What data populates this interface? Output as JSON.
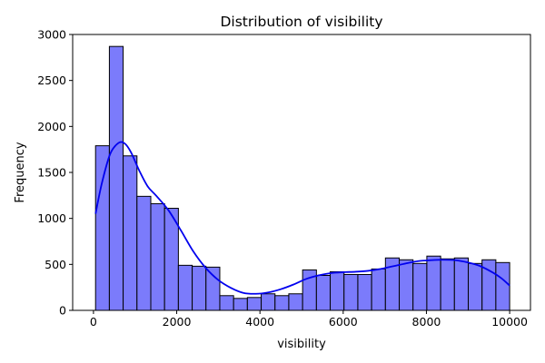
{
  "chart_data": {
    "type": "bar",
    "title": "Distribution of visibility",
    "xlabel": "visibility",
    "ylabel": "Frequency",
    "xlim": [
      -500,
      10500
    ],
    "ylim": [
      0,
      3000
    ],
    "x_ticks": [
      0,
      2000,
      4000,
      6000,
      8000,
      10000
    ],
    "x_tick_labels": [
      "0",
      "2000",
      "4000",
      "6000",
      "8000",
      "10000"
    ],
    "y_ticks": [
      0,
      500,
      1000,
      1500,
      2000,
      2500,
      3000
    ],
    "y_tick_labels": [
      "0",
      "500",
      "1000",
      "1500",
      "2000",
      "2500",
      "3000"
    ],
    "bins": [
      {
        "x0": 50,
        "x1": 382,
        "count": 1790
      },
      {
        "x0": 382,
        "x1": 713,
        "count": 2870
      },
      {
        "x0": 713,
        "x1": 1045,
        "count": 1680
      },
      {
        "x0": 1045,
        "x1": 1377,
        "count": 1240
      },
      {
        "x0": 1377,
        "x1": 1708,
        "count": 1160
      },
      {
        "x0": 1708,
        "x1": 2040,
        "count": 1110
      },
      {
        "x0": 2040,
        "x1": 2372,
        "count": 490
      },
      {
        "x0": 2372,
        "x1": 2703,
        "count": 480
      },
      {
        "x0": 2703,
        "x1": 3035,
        "count": 470
      },
      {
        "x0": 3035,
        "x1": 3367,
        "count": 160
      },
      {
        "x0": 3367,
        "x1": 3698,
        "count": 130
      },
      {
        "x0": 3698,
        "x1": 4030,
        "count": 140
      },
      {
        "x0": 4030,
        "x1": 4362,
        "count": 180
      },
      {
        "x0": 4362,
        "x1": 4693,
        "count": 160
      },
      {
        "x0": 4693,
        "x1": 5025,
        "count": 180
      },
      {
        "x0": 5025,
        "x1": 5357,
        "count": 440
      },
      {
        "x0": 5357,
        "x1": 5688,
        "count": 380
      },
      {
        "x0": 5688,
        "x1": 6020,
        "count": 420
      },
      {
        "x0": 6020,
        "x1": 6352,
        "count": 390
      },
      {
        "x0": 6352,
        "x1": 6683,
        "count": 390
      },
      {
        "x0": 6683,
        "x1": 7015,
        "count": 450
      },
      {
        "x0": 7015,
        "x1": 7347,
        "count": 570
      },
      {
        "x0": 7347,
        "x1": 7678,
        "count": 550
      },
      {
        "x0": 7678,
        "x1": 8010,
        "count": 510
      },
      {
        "x0": 8010,
        "x1": 8342,
        "count": 590
      },
      {
        "x0": 8342,
        "x1": 8673,
        "count": 560
      },
      {
        "x0": 8673,
        "x1": 9005,
        "count": 570
      },
      {
        "x0": 9005,
        "x1": 9337,
        "count": 510
      },
      {
        "x0": 9337,
        "x1": 9668,
        "count": 550
      },
      {
        "x0": 9668,
        "x1": 10000,
        "count": 520
      }
    ],
    "kde": {
      "x": [
        50,
        200,
        400,
        600,
        750,
        900,
        1100,
        1300,
        1500,
        1800,
        2100,
        2400,
        2700,
        3000,
        3300,
        3600,
        3900,
        4200,
        4500,
        4800,
        5100,
        5400,
        5700,
        6000,
        6300,
        6600,
        6900,
        7200,
        7500,
        7800,
        8100,
        8400,
        8700,
        9000,
        9300,
        9600,
        9800,
        10000
      ],
      "y": [
        1050,
        1380,
        1700,
        1820,
        1815,
        1720,
        1520,
        1350,
        1250,
        1090,
        870,
        640,
        460,
        330,
        245,
        190,
        180,
        195,
        230,
        280,
        340,
        380,
        405,
        415,
        420,
        430,
        450,
        480,
        510,
        535,
        545,
        550,
        545,
        520,
        480,
        410,
        350,
        270
      ]
    },
    "bar_fill": "#7b7bfb",
    "bar_edge": "#000000",
    "kde_color": "#0000ee",
    "grid": false,
    "legend": "none"
  }
}
